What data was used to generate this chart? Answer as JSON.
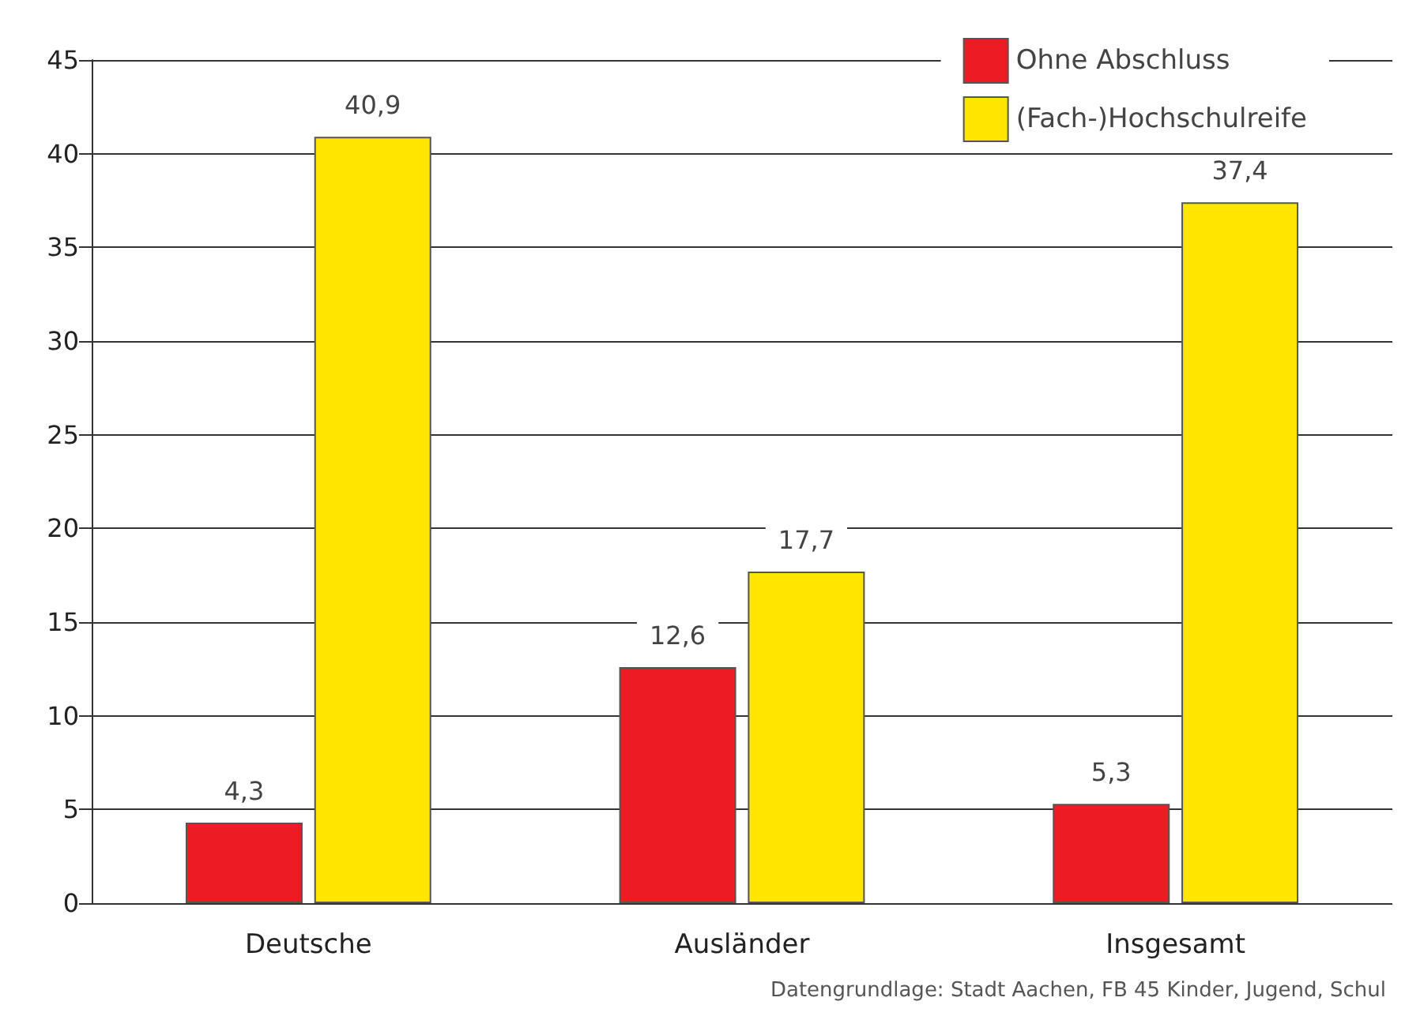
{
  "chart_data": {
    "type": "bar",
    "categories": [
      "Deutsche",
      "Ausländer",
      "Insgesamt"
    ],
    "series": [
      {
        "name": "Ohne Abschluss",
        "color": "#ed1c24",
        "values": [
          4.3,
          12.6,
          5.3
        ],
        "value_labels": [
          "4,3",
          "12,6",
          "5,3"
        ]
      },
      {
        "name": "(Fach-)Hochschulreife",
        "color": "#ffe600",
        "values": [
          40.9,
          17.7,
          37.4
        ],
        "value_labels": [
          "40,9",
          "17,7",
          "37,4"
        ]
      }
    ],
    "ylim": [
      0,
      45
    ],
    "yticks": [
      0,
      5,
      10,
      15,
      20,
      25,
      30,
      35,
      40,
      45
    ],
    "grid": "y",
    "legend": "top right",
    "annotations": [
      "Datengrundlage: Stadt Aachen, FB 45 Kinder, Jugend, Schul"
    ]
  }
}
